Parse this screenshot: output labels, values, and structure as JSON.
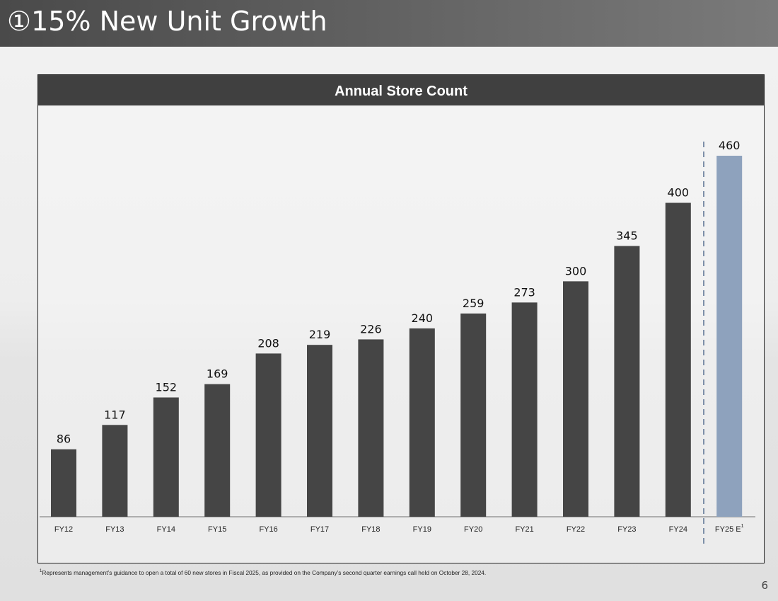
{
  "header": {
    "title": "①15% New Unit Growth"
  },
  "page_number": "6",
  "footnote": {
    "marker": "1",
    "text": "Represents management’s guidance to open a total of 60 new stores in Fiscal 2025, as provided on the Company’s second quarter earnings call held on October 28, 2024."
  },
  "chart_data": {
    "type": "bar",
    "title": "Annual Store Count",
    "categories": [
      "FY12",
      "FY13",
      "FY14",
      "FY15",
      "FY16",
      "FY17",
      "FY18",
      "FY19",
      "FY20",
      "FY21",
      "FY22",
      "FY23",
      "FY24",
      "FY25 E"
    ],
    "category_superscripts": {
      "FY25 E": "1"
    },
    "values": [
      86,
      117,
      152,
      169,
      208,
      219,
      226,
      240,
      259,
      273,
      300,
      345,
      400,
      460
    ],
    "estimate_categories": [
      "FY25 E"
    ],
    "ylim": [
      0,
      460
    ],
    "grid": false,
    "divider": "dashed line between FY24 and FY25 E",
    "colors": {
      "actual": "#454545",
      "estimate": "#8ea2bd",
      "divider": "#7d8fa8"
    }
  }
}
